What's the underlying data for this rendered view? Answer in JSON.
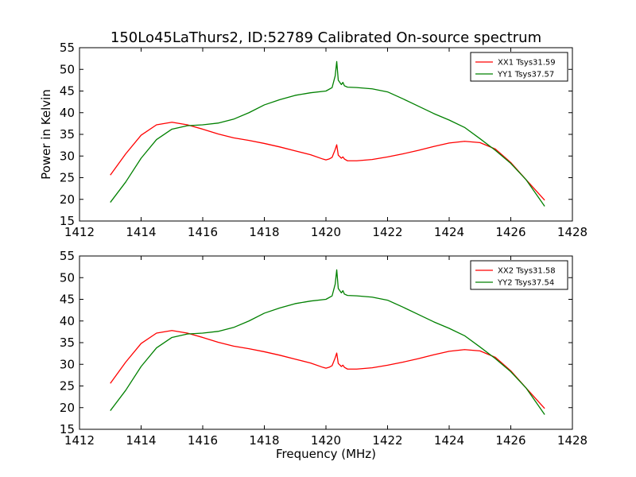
{
  "figure": {
    "title": "150Lo45LaThurs2, ID:52789 Calibrated On-source spectrum"
  },
  "chart_data": [
    {
      "type": "line",
      "title": "150Lo45LaThurs2, ID:52789 Calibrated On-source spectrum",
      "xlabel": "",
      "ylabel": "Power in Kelvin",
      "xlim": [
        1412,
        1428
      ],
      "ylim": [
        15,
        55
      ],
      "xticks": [
        "1412",
        "1414",
        "1416",
        "1418",
        "1420",
        "1422",
        "1424",
        "1426",
        "1428"
      ],
      "yticks": [
        "15",
        "20",
        "25",
        "30",
        "35",
        "40",
        "45",
        "50",
        "55"
      ],
      "grid": false,
      "legend": "top-right",
      "series": [
        {
          "name": "XX1 Tsys31.59",
          "color": "#ff0000",
          "x": [
            1413.0,
            1413.5,
            1414.0,
            1414.5,
            1415.0,
            1415.5,
            1416.0,
            1416.5,
            1417.0,
            1417.5,
            1418.0,
            1418.5,
            1419.0,
            1419.5,
            1419.9,
            1420.0,
            1420.1,
            1420.2,
            1420.3,
            1420.35,
            1420.4,
            1420.5,
            1420.55,
            1420.6,
            1420.7,
            1421.0,
            1421.5,
            1422.0,
            1422.5,
            1423.0,
            1423.5,
            1424.0,
            1424.5,
            1425.0,
            1425.5,
            1426.0,
            1426.5,
            1427.1
          ],
          "values": [
            25.6,
            30.5,
            34.8,
            37.2,
            37.8,
            37.2,
            36.2,
            35.1,
            34.2,
            33.6,
            32.9,
            32.1,
            31.2,
            30.3,
            29.3,
            29.1,
            29.3,
            29.7,
            31.5,
            32.6,
            30.2,
            29.5,
            29.8,
            29.3,
            28.9,
            28.9,
            29.2,
            29.8,
            30.5,
            31.3,
            32.2,
            33.0,
            33.4,
            33.1,
            31.6,
            28.5,
            24.5,
            19.8
          ]
        },
        {
          "name": "YY1 Tsys37.57",
          "color": "#008000",
          "x": [
            1413.0,
            1413.5,
            1414.0,
            1414.5,
            1415.0,
            1415.5,
            1416.0,
            1416.5,
            1417.0,
            1417.5,
            1418.0,
            1418.5,
            1419.0,
            1419.5,
            1420.0,
            1420.2,
            1420.3,
            1420.35,
            1420.4,
            1420.5,
            1420.55,
            1420.6,
            1420.7,
            1421.0,
            1421.5,
            1422.0,
            1422.5,
            1423.0,
            1423.5,
            1424.0,
            1424.5,
            1425.0,
            1425.5,
            1426.0,
            1426.5,
            1427.1
          ],
          "values": [
            19.3,
            24.0,
            29.5,
            33.8,
            36.2,
            37.0,
            37.2,
            37.6,
            38.5,
            40.0,
            41.8,
            43.0,
            44.0,
            44.6,
            45.0,
            45.8,
            48.5,
            51.8,
            47.5,
            46.5,
            47.0,
            46.2,
            45.9,
            45.8,
            45.5,
            44.8,
            43.2,
            41.5,
            39.8,
            38.3,
            36.6,
            34.0,
            31.3,
            28.3,
            24.5,
            18.4
          ]
        }
      ]
    },
    {
      "type": "line",
      "title": "",
      "xlabel": "Frequency (MHz)",
      "ylabel": "",
      "xlim": [
        1412,
        1428
      ],
      "ylim": [
        15,
        55
      ],
      "xticks": [
        "1412",
        "1414",
        "1416",
        "1418",
        "1420",
        "1422",
        "1424",
        "1426",
        "1428"
      ],
      "yticks": [
        "15",
        "20",
        "25",
        "30",
        "35",
        "40",
        "45",
        "50",
        "55"
      ],
      "grid": false,
      "legend": "top-right",
      "series": [
        {
          "name": "XX2 Tsys31.58",
          "color": "#ff0000",
          "x": [
            1413.0,
            1413.5,
            1414.0,
            1414.5,
            1415.0,
            1415.5,
            1416.0,
            1416.5,
            1417.0,
            1417.5,
            1418.0,
            1418.5,
            1419.0,
            1419.5,
            1419.9,
            1420.0,
            1420.1,
            1420.2,
            1420.3,
            1420.35,
            1420.4,
            1420.5,
            1420.55,
            1420.6,
            1420.7,
            1421.0,
            1421.5,
            1422.0,
            1422.5,
            1423.0,
            1423.5,
            1424.0,
            1424.5,
            1425.0,
            1425.5,
            1426.0,
            1426.5,
            1427.1
          ],
          "values": [
            25.6,
            30.5,
            34.8,
            37.2,
            37.8,
            37.2,
            36.2,
            35.1,
            34.2,
            33.6,
            32.9,
            32.1,
            31.2,
            30.3,
            29.3,
            29.1,
            29.3,
            29.7,
            31.5,
            32.6,
            30.2,
            29.5,
            29.8,
            29.3,
            28.9,
            28.9,
            29.2,
            29.8,
            30.5,
            31.3,
            32.2,
            33.0,
            33.4,
            33.1,
            31.6,
            28.5,
            24.5,
            19.8
          ]
        },
        {
          "name": "YY2 Tsys37.54",
          "color": "#008000",
          "x": [
            1413.0,
            1413.5,
            1414.0,
            1414.5,
            1415.0,
            1415.5,
            1416.0,
            1416.5,
            1417.0,
            1417.5,
            1418.0,
            1418.5,
            1419.0,
            1419.5,
            1420.0,
            1420.2,
            1420.3,
            1420.35,
            1420.4,
            1420.5,
            1420.55,
            1420.6,
            1420.7,
            1421.0,
            1421.5,
            1422.0,
            1422.5,
            1423.0,
            1423.5,
            1424.0,
            1424.5,
            1425.0,
            1425.5,
            1426.0,
            1426.5,
            1427.1
          ],
          "values": [
            19.3,
            24.0,
            29.5,
            33.8,
            36.2,
            37.0,
            37.2,
            37.6,
            38.5,
            40.0,
            41.8,
            43.0,
            44.0,
            44.6,
            45.0,
            45.8,
            48.5,
            51.8,
            47.5,
            46.5,
            47.0,
            46.2,
            45.9,
            45.8,
            45.5,
            44.8,
            43.2,
            41.5,
            39.8,
            38.3,
            36.6,
            34.0,
            31.3,
            28.3,
            24.5,
            18.4
          ]
        }
      ]
    }
  ]
}
